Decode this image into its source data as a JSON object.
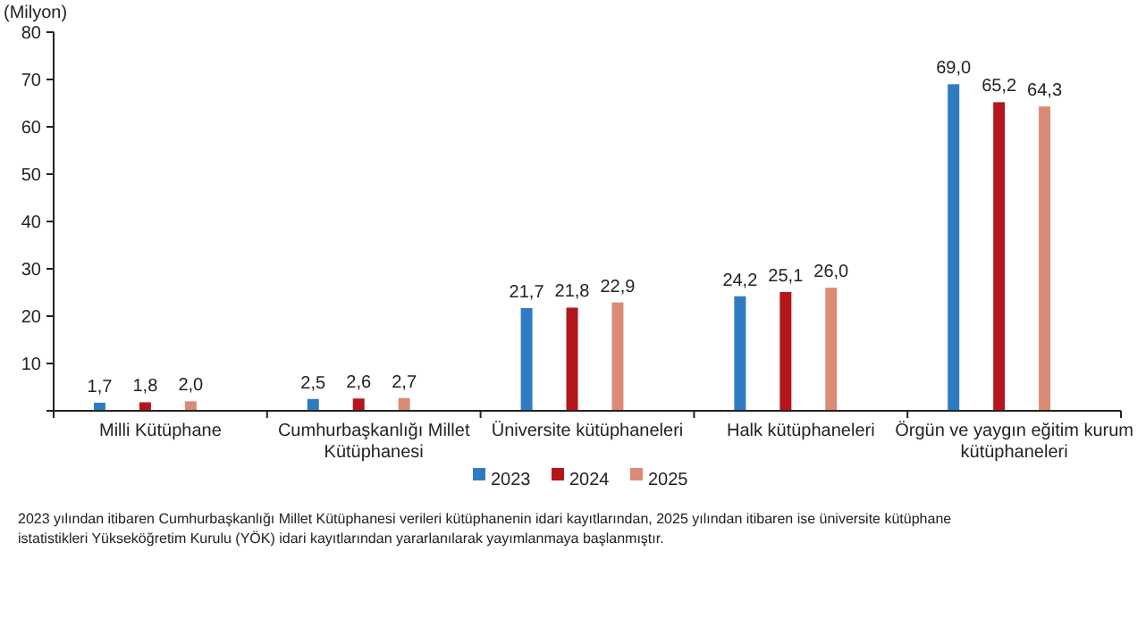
{
  "chart_data": {
    "type": "bar",
    "ylabel": "(Milyon)",
    "categories": [
      "Milli Kütüphane",
      "Cumhurbaşkanlığı Millet Kütüphanesi",
      "Üniversite kütüphaneleri",
      "Halk kütüphaneleri",
      "Örgün ve yaygın eğitim kurum kütüphaneleri"
    ],
    "series": [
      {
        "name": "2023",
        "color": "#2e7bc4",
        "values": [
          1.7,
          2.5,
          21.7,
          24.2,
          69.0
        ],
        "value_labels": [
          "1,7",
          "2,5",
          "21,7",
          "24,2",
          "69,0"
        ]
      },
      {
        "name": "2024",
        "color": "#b3171c",
        "values": [
          1.8,
          2.6,
          21.8,
          25.1,
          65.2
        ],
        "value_labels": [
          "1,8",
          "2,6",
          "21,8",
          "25,1",
          "65,2"
        ]
      },
      {
        "name": "2025",
        "color": "#d98b76",
        "values": [
          2.0,
          2.7,
          22.9,
          26.0,
          64.3
        ],
        "value_labels": [
          "2,0",
          "2,7",
          "22,9",
          "26,0",
          "64,3"
        ]
      }
    ],
    "ylim": [
      0,
      80
    ],
    "yticks": [
      {
        "value": 0,
        "label": null
      },
      10,
      20,
      30,
      40,
      50,
      60,
      70,
      80
    ],
    "grid": false,
    "legend": "bottom",
    "annotations": [
      "2023 yılından itibaren Cumhurbaşkanlığı Millet Kütüphanesi verileri kütüphanenin idari kayıtlarından, 2025 yılından itibaren ise üniversite kütüphane istatistikleri Yükseköğretim Kurulu (YÖK) idari kayıtlarından yararlanılarak yayımlanmaya başlanmıştır."
    ]
  }
}
